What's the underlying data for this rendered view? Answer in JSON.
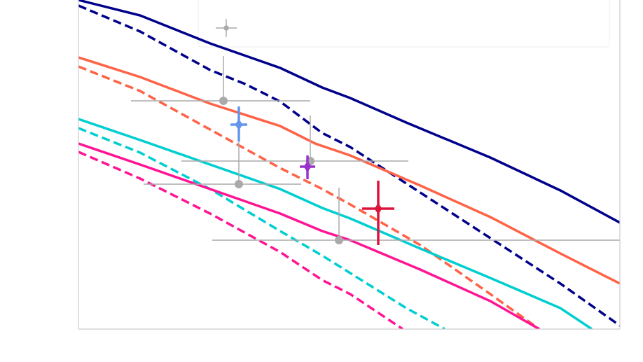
{
  "chart_data": {
    "type": "line",
    "xlim": [
      0,
      773
    ],
    "ylim": [
      0,
      470
    ],
    "series": [
      {
        "color": "#00008b",
        "dash": false,
        "x": [
          0,
          88,
          188,
          288,
          348,
          388,
          468,
          588,
          688,
          773
        ],
        "y": [
          470,
          448,
          408,
          373,
          345,
          330,
          295,
          245,
          198,
          152
        ]
      },
      {
        "color": "#00008b",
        "dash": true,
        "x": [
          0,
          88,
          188,
          238,
          288,
          348,
          388,
          468,
          588,
          688,
          773
        ],
        "y": [
          462,
          425,
          370,
          350,
          325,
          280,
          260,
          208,
          130,
          65,
          5
        ]
      },
      {
        "color": "#ff6347",
        "dash": false,
        "x": [
          0,
          88,
          188,
          288,
          338,
          388,
          488,
          588,
          688,
          773
        ],
        "y": [
          388,
          360,
          322,
          290,
          265,
          248,
          205,
          160,
          108,
          65
        ]
      },
      {
        "color": "#ff6347",
        "dash": true,
        "x": [
          0,
          88,
          188,
          288,
          348,
          388,
          488,
          588,
          658
        ],
        "y": [
          375,
          340,
          285,
          230,
          200,
          178,
          120,
          50,
          0
        ]
      },
      {
        "color": "#00ced1",
        "dash": false,
        "x": [
          0,
          88,
          188,
          288,
          348,
          388,
          488,
          588,
          688,
          733
        ],
        "y": [
          300,
          270,
          235,
          200,
          173,
          158,
          115,
          73,
          30,
          0
        ]
      },
      {
        "color": "#00ced1",
        "dash": true,
        "x": [
          0,
          88,
          188,
          288,
          348,
          388,
          468,
          523
        ],
        "y": [
          287,
          252,
          200,
          140,
          105,
          80,
          30,
          0
        ]
      },
      {
        "color": "#ff1493",
        "dash": false,
        "x": [
          0,
          88,
          188,
          288,
          348,
          388,
          488,
          588,
          658
        ],
        "y": [
          265,
          235,
          200,
          165,
          140,
          127,
          85,
          40,
          0
        ]
      },
      {
        "color": "#ff1493",
        "dash": true,
        "x": [
          0,
          88,
          188,
          288,
          348,
          388,
          463
        ],
        "y": [
          253,
          215,
          165,
          110,
          70,
          50,
          0
        ]
      }
    ],
    "points": [
      {
        "color": "#aaaaaa",
        "marker": "circle",
        "x": 207,
        "y": 326,
        "xerr": [
          132,
          124
        ],
        "yerr": [
          0,
          64
        ]
      },
      {
        "color": "#aaaaaa",
        "marker": "circle",
        "x": 229,
        "y": 207,
        "xerr": [
          136,
          89
        ],
        "yerr": [
          0,
          103
        ]
      },
      {
        "color": "#aaaaaa",
        "marker": "circle",
        "x": 331,
        "y": 240,
        "xerr": [
          184,
          140
        ],
        "yerr": [
          0,
          65
        ]
      },
      {
        "color": "#aaaaaa",
        "marker": "circle",
        "x": 372,
        "y": 127,
        "xerr": [
          181,
          401
        ],
        "yerr": [
          0,
          75
        ]
      },
      {
        "color": "#6495ed",
        "marker": "diamond",
        "x": 229,
        "y": 292,
        "xerr": [
          12,
          12
        ],
        "yerr": [
          24,
          26
        ]
      },
      {
        "color": "#9932cc",
        "marker": "diamond",
        "x": 327,
        "y": 232,
        "xerr": [
          11,
          11
        ],
        "yerr": [
          18,
          16
        ]
      },
      {
        "color": "#dc143c",
        "marker": "diamond",
        "x": 428,
        "y": 172,
        "xerr": [
          23,
          23
        ],
        "yerr": [
          52,
          40
        ]
      }
    ]
  }
}
